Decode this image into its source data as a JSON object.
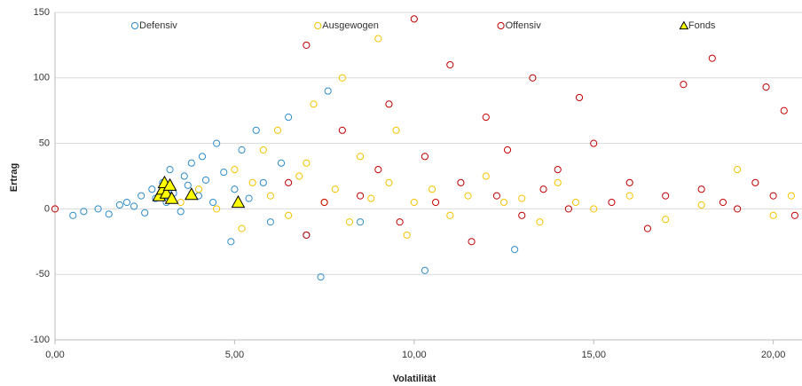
{
  "chart_data": {
    "type": "scatter",
    "x_label": "Volatilität",
    "y_label": "Ertrag",
    "xlim": [
      0,
      20.8
    ],
    "ylim": [
      -100,
      150
    ],
    "xticks": [
      {
        "value": 0,
        "label": "0,00"
      },
      {
        "value": 5,
        "label": "5,00"
      },
      {
        "value": 10,
        "label": "10,00"
      },
      {
        "value": 15,
        "label": "15,00"
      },
      {
        "value": 20,
        "label": "20,00"
      }
    ],
    "yticks": [
      -100,
      -50,
      0,
      50,
      100,
      150
    ],
    "grid": true,
    "legend": "top",
    "series": [
      {
        "name": "Defensiv",
        "color": "#2e8bc9",
        "marker": "circle",
        "x": [
          0.5,
          0.8,
          1.2,
          1.5,
          1.8,
          2.0,
          2.2,
          2.4,
          2.5,
          2.7,
          2.8,
          3.0,
          3.1,
          3.2,
          3.3,
          3.5,
          3.6,
          3.7,
          3.8,
          4.0,
          4.1,
          4.2,
          4.4,
          4.5,
          4.7,
          4.9,
          5.0,
          5.2,
          5.4,
          5.6,
          5.8,
          6.0,
          6.3,
          6.5,
          7.0,
          7.4,
          7.6,
          8.5,
          10.3,
          12.8
        ],
        "values": [
          -5,
          -2,
          0,
          -4,
          3,
          5,
          2,
          10,
          -3,
          15,
          8,
          20,
          5,
          30,
          12,
          -2,
          25,
          18,
          35,
          10,
          40,
          22,
          5,
          50,
          28,
          -25,
          15,
          45,
          8,
          60,
          20,
          -10,
          35,
          70,
          -20,
          -52,
          90,
          -10,
          -47,
          -31
        ]
      },
      {
        "name": "Ausgewogen",
        "color": "#f5c400",
        "marker": "circle",
        "x": [
          3.5,
          4.0,
          4.5,
          5.0,
          5.2,
          5.5,
          5.8,
          6.0,
          6.2,
          6.5,
          6.8,
          7.0,
          7.2,
          7.5,
          7.8,
          8.0,
          8.2,
          8.5,
          8.8,
          9.0,
          9.3,
          9.5,
          9.8,
          10.0,
          10.5,
          11.0,
          11.5,
          12.0,
          12.5,
          13.0,
          13.5,
          14.0,
          14.5,
          15.0,
          16.0,
          17.0,
          18.0,
          19.0,
          20.0,
          20.5
        ],
        "values": [
          5,
          15,
          0,
          30,
          -15,
          20,
          45,
          10,
          60,
          -5,
          25,
          35,
          80,
          5,
          15,
          100,
          -10,
          40,
          8,
          130,
          20,
          60,
          -20,
          5,
          15,
          -5,
          10,
          25,
          5,
          8,
          -10,
          20,
          5,
          0,
          10,
          -8,
          3,
          30,
          -5,
          10
        ]
      },
      {
        "name": "Offensiv",
        "color": "#c00000",
        "marker": "circle",
        "x": [
          0,
          6.5,
          7.0,
          7.5,
          8.0,
          8.5,
          9.0,
          9.3,
          9.6,
          10.0,
          10.3,
          10.6,
          11.0,
          11.3,
          11.6,
          12.0,
          12.3,
          12.6,
          13.0,
          13.3,
          13.6,
          14.0,
          14.3,
          14.6,
          15.0,
          15.5,
          16.0,
          16.5,
          17.0,
          17.5,
          18.0,
          18.3,
          18.6,
          19.0,
          19.5,
          19.8,
          20.0,
          20.3,
          20.6,
          7.0
        ],
        "values": [
          0,
          20,
          125,
          5,
          60,
          10,
          30,
          80,
          -10,
          145,
          40,
          5,
          110,
          20,
          -25,
          70,
          10,
          45,
          -5,
          100,
          15,
          30,
          0,
          85,
          50,
          5,
          20,
          -15,
          10,
          95,
          15,
          115,
          5,
          0,
          20,
          93,
          10,
          75,
          -5,
          -20
        ]
      },
      {
        "name": "Fonds",
        "color": "#ffff00",
        "marker": "triangle",
        "x": [
          2.9,
          3.0,
          3.05,
          3.1,
          3.2,
          3.25,
          3.8,
          5.1
        ],
        "values": [
          10,
          15,
          20,
          12,
          18,
          8,
          11,
          5
        ]
      }
    ]
  }
}
